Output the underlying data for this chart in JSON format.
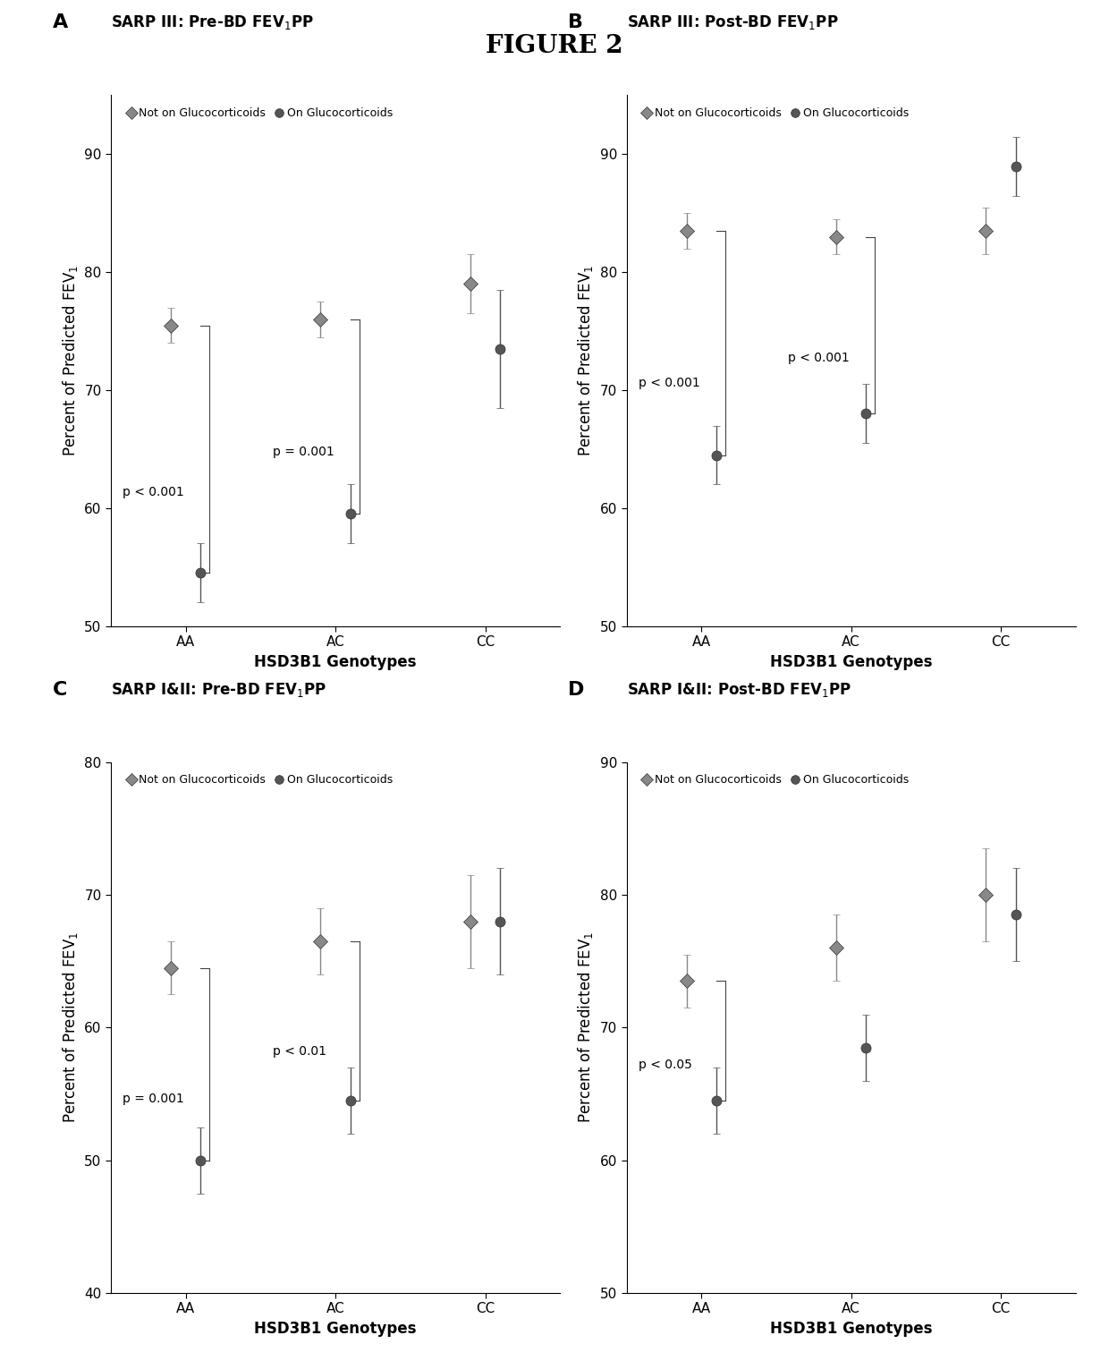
{
  "figure_title": "FIGURE 2",
  "panels": [
    {
      "label": "A",
      "title": "SARP III: Pre-BD FEV",
      "title_suffix": "PP",
      "ylabel": "Percent of Predicted FEV",
      "xlabel": "HSD3B1 Genotypes",
      "ylim": [
        50,
        95
      ],
      "yticks": [
        50,
        60,
        70,
        80,
        90
      ],
      "genotypes": [
        "AA",
        "AC",
        "CC"
      ],
      "not_gluco": [
        75.5,
        76.0,
        79.0
      ],
      "not_gluco_err": [
        1.5,
        1.5,
        2.5
      ],
      "on_gluco": [
        54.5,
        59.5,
        73.5
      ],
      "on_gluco_err": [
        2.5,
        2.5,
        5.0
      ],
      "pvalues": [
        "p < 0.001",
        "p = 0.001",
        ""
      ],
      "bracket_genotypes": [
        0,
        1
      ]
    },
    {
      "label": "B",
      "title": "SARP III: Post-BD FEV",
      "title_suffix": "PP",
      "ylabel": "Percent of Predicted FEV",
      "xlabel": "HSD3B1 Genotypes",
      "ylim": [
        50,
        95
      ],
      "yticks": [
        50,
        60,
        70,
        80,
        90
      ],
      "genotypes": [
        "AA",
        "AC",
        "CC"
      ],
      "not_gluco": [
        83.5,
        83.0,
        83.5
      ],
      "not_gluco_err": [
        1.5,
        1.5,
        2.0
      ],
      "on_gluco": [
        64.5,
        68.0,
        89.0
      ],
      "on_gluco_err": [
        2.5,
        2.5,
        2.5
      ],
      "pvalues": [
        "p < 0.001",
        "p < 0.001",
        ""
      ],
      "bracket_genotypes": [
        0,
        1
      ]
    },
    {
      "label": "C",
      "title": "SARP I&II: Pre-BD FEV",
      "title_suffix": "PP",
      "ylabel": "Percent of Predicted FEV",
      "xlabel": "HSD3B1 Genotypes",
      "ylim": [
        40,
        80
      ],
      "yticks": [
        40,
        50,
        60,
        70,
        80
      ],
      "genotypes": [
        "AA",
        "AC",
        "CC"
      ],
      "not_gluco": [
        64.5,
        66.5,
        68.0
      ],
      "not_gluco_err": [
        2.0,
        2.5,
        3.5
      ],
      "on_gluco": [
        50.0,
        54.5,
        68.0
      ],
      "on_gluco_err": [
        2.5,
        2.5,
        4.0
      ],
      "pvalues": [
        "p = 0.001",
        "p < 0.01",
        ""
      ],
      "bracket_genotypes": [
        0,
        1
      ]
    },
    {
      "label": "D",
      "title": "SARP I&II: Post-BD FEV",
      "title_suffix": "PP",
      "ylabel": "Percent of Predicted FEV",
      "xlabel": "HSD3B1 Genotypes",
      "ylim": [
        50,
        90
      ],
      "yticks": [
        50,
        60,
        70,
        80,
        90
      ],
      "genotypes": [
        "AA",
        "AC",
        "CC"
      ],
      "not_gluco": [
        73.5,
        76.0,
        80.0
      ],
      "not_gluco_err": [
        2.0,
        2.5,
        3.5
      ],
      "on_gluco": [
        64.5,
        68.5,
        78.5
      ],
      "on_gluco_err": [
        2.5,
        2.5,
        3.5
      ],
      "pvalues": [
        "p < 0.05",
        "",
        ""
      ],
      "bracket_genotypes": [
        0
      ]
    }
  ],
  "legend_not_gluco": "Not on Glucocorticoids",
  "legend_on_gluco": "On Glucocorticoids",
  "marker_not_gluco": "D",
  "marker_on_gluco": "o",
  "color_not_gluco": "#888888",
  "color_on_gluco": "#555555",
  "markersize": 8,
  "capsize": 3,
  "elinewidth": 1.0,
  "title_fontsize": 20,
  "label_fontsize": 12,
  "tick_fontsize": 11,
  "panel_label_fontsize": 16,
  "panel_title_fontsize": 12,
  "legend_fontsize": 9,
  "pvalue_fontsize": 10
}
